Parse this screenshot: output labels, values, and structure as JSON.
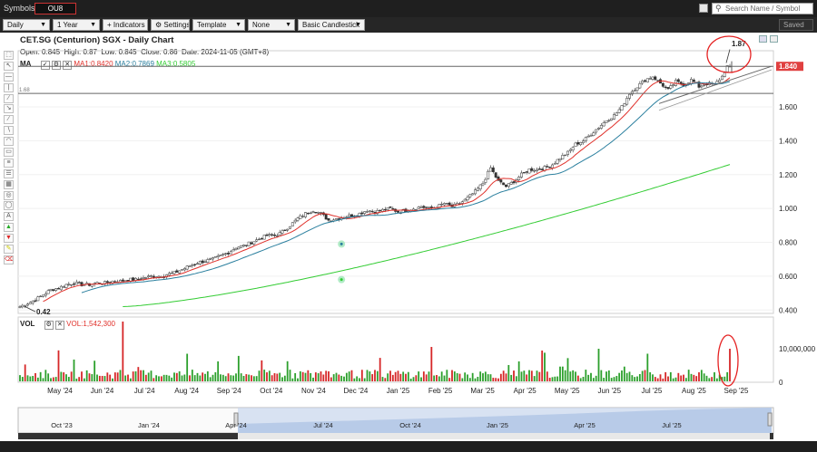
{
  "topbar": {
    "symbols_label": "Symbols:",
    "symbol_value": "OU8",
    "search_placeholder": "Search Name / Symbol"
  },
  "toolbar": {
    "period": "Daily",
    "range": "1 Year",
    "indicators_label": "+ Indicators",
    "settings_label": "Settings",
    "template_label": "Template",
    "template_value": "None",
    "chart_type": "Basic Candlestick",
    "saved_label": "Saved"
  },
  "chart_header": {
    "title": "CET.SG (Centurion) SGX - Daily Chart",
    "open_label": "Open:",
    "open": "0.845",
    "high_label": "High:",
    "high": "0.87",
    "low_label": "Low:",
    "low": "0.845",
    "close_label": "Close:",
    "close": "0.86",
    "date_label": "Date:",
    "date": "2024-11-05 (GMT+8)"
  },
  "ma_legend": {
    "label": "MA",
    "ma1": "MA1:0.8420",
    "ma2": "MA2:0.7869",
    "ma3": "MA3:0.5805"
  },
  "vol_legend": {
    "label": "VOL",
    "value": "VOL:1,542,300"
  },
  "annotations": {
    "low_callout": "0.42",
    "high_callout": "1.87",
    "hline_1_label": "1.68",
    "price_tag": "1.840"
  },
  "colors": {
    "up": "#2ca02c",
    "down": "#d62728",
    "ma1": "#e0302a",
    "ma2": "#2a7f9e",
    "ma3": "#33cc33",
    "circle": "#e52222",
    "price_tag_bg": "#e04040"
  },
  "chart_data": {
    "type": "candlestick",
    "y_ticks": [
      "0.400",
      "0.600",
      "0.800",
      "1.000",
      "1.200",
      "1.400",
      "1.600"
    ],
    "ylim": [
      0.38,
      1.9
    ],
    "x_ticks": [
      "May '24",
      "Jun '24",
      "Jul '24",
      "Aug '24",
      "Sep '24",
      "Oct '24",
      "Nov '24",
      "Dec '24",
      "Jan '25",
      "Feb '25",
      "Mar '25",
      "Apr '25",
      "May '25",
      "Jun '25",
      "Jul '25",
      "Aug '25",
      "Sep '25"
    ],
    "vol_ticks": [
      "10,000,000",
      "0"
    ],
    "close_path": [
      [
        0,
        0.42
      ],
      [
        3,
        0.44
      ],
      [
        6,
        0.46
      ],
      [
        9,
        0.49
      ],
      [
        12,
        0.52
      ],
      [
        15,
        0.53
      ],
      [
        18,
        0.55
      ],
      [
        21,
        0.56
      ],
      [
        24,
        0.55
      ],
      [
        27,
        0.55
      ],
      [
        30,
        0.56
      ],
      [
        33,
        0.56
      ],
      [
        36,
        0.57
      ],
      [
        39,
        0.57
      ],
      [
        42,
        0.58
      ],
      [
        45,
        0.58
      ],
      [
        48,
        0.59
      ],
      [
        51,
        0.6
      ],
      [
        54,
        0.6
      ],
      [
        57,
        0.61
      ],
      [
        60,
        0.62
      ],
      [
        63,
        0.64
      ],
      [
        66,
        0.66
      ],
      [
        69,
        0.68
      ],
      [
        72,
        0.69
      ],
      [
        75,
        0.7
      ],
      [
        78,
        0.72
      ],
      [
        81,
        0.74
      ],
      [
        84,
        0.77
      ],
      [
        87,
        0.78
      ],
      [
        90,
        0.8
      ],
      [
        93,
        0.82
      ],
      [
        96,
        0.84
      ],
      [
        99,
        0.84
      ],
      [
        102,
        0.86
      ],
      [
        105,
        0.9
      ],
      [
        108,
        0.94
      ],
      [
        111,
        0.97
      ],
      [
        114,
        0.99
      ],
      [
        117,
        0.97
      ],
      [
        120,
        0.93
      ],
      [
        123,
        0.94
      ],
      [
        126,
        0.95
      ],
      [
        129,
        0.96
      ],
      [
        132,
        0.97
      ],
      [
        135,
        0.99
      ],
      [
        138,
        0.98
      ],
      [
        141,
        0.99
      ],
      [
        144,
        1.0
      ],
      [
        147,
        0.98
      ],
      [
        150,
        0.99
      ],
      [
        153,
        1.0
      ],
      [
        156,
        1.01
      ],
      [
        159,
        1.0
      ],
      [
        162,
        1.01
      ],
      [
        165,
        1.03
      ],
      [
        168,
        1.01
      ],
      [
        171,
        1.03
      ],
      [
        174,
        1.06
      ],
      [
        177,
        1.1
      ],
      [
        180,
        1.15
      ],
      [
        183,
        1.24
      ],
      [
        186,
        1.16
      ],
      [
        189,
        1.13
      ],
      [
        192,
        1.16
      ],
      [
        195,
        1.2
      ],
      [
        198,
        1.23
      ],
      [
        201,
        1.23
      ],
      [
        204,
        1.24
      ],
      [
        207,
        1.26
      ],
      [
        210,
        1.3
      ],
      [
        213,
        1.33
      ],
      [
        216,
        1.38
      ],
      [
        219,
        1.4
      ],
      [
        222,
        1.44
      ],
      [
        225,
        1.48
      ],
      [
        228,
        1.52
      ],
      [
        231,
        1.55
      ],
      [
        234,
        1.6
      ],
      [
        237,
        1.68
      ],
      [
        240,
        1.72
      ],
      [
        243,
        1.76
      ],
      [
        246,
        1.78
      ],
      [
        249,
        1.74
      ],
      [
        252,
        1.7
      ],
      [
        255,
        1.75
      ],
      [
        258,
        1.73
      ],
      [
        261,
        1.76
      ],
      [
        264,
        1.72
      ],
      [
        267,
        1.74
      ],
      [
        270,
        1.73
      ],
      [
        273,
        1.78
      ],
      [
        276,
        1.87
      ]
    ]
  },
  "navigator": {
    "labels": [
      "Oct '23",
      "Jan '24",
      "Apr '24",
      "Jul '24",
      "Oct '24",
      "Jan '25",
      "Apr '25",
      "Jul '25"
    ]
  }
}
